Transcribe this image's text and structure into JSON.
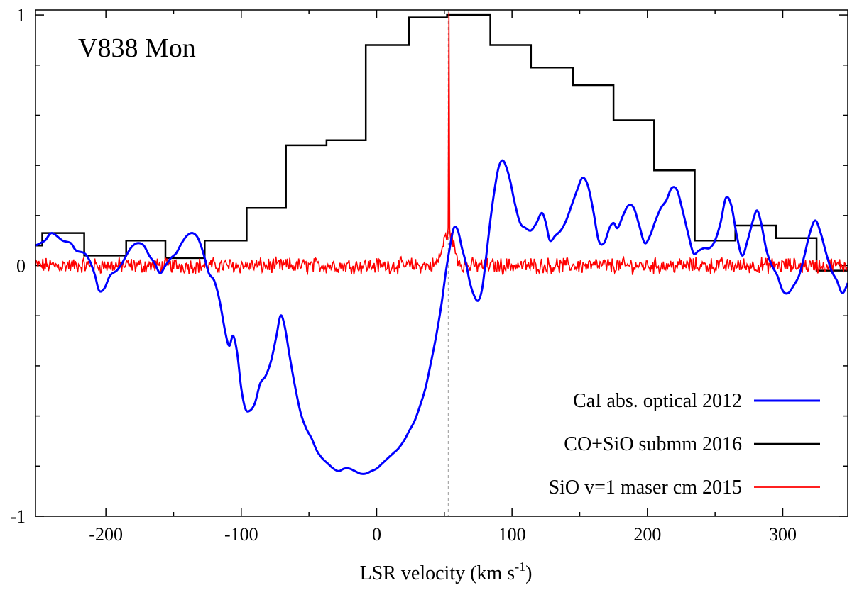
{
  "chart_data": {
    "type": "line",
    "title": "V838 Mon",
    "xlabel_main": "LSR velocity (km s",
    "xlabel_sup": "-1",
    "xlabel_tail": ")",
    "ylabel": "",
    "xlim": [
      -252,
      348
    ],
    "ylim": [
      -1,
      1.02
    ],
    "x_ticks": [
      -200,
      -100,
      0,
      100,
      200,
      300
    ],
    "x_tick_labels": [
      "-200",
      "-100",
      "0",
      "100",
      "200",
      "300"
    ],
    "x_minor_ticks": [
      -150,
      -50,
      50,
      150,
      250
    ],
    "y_ticks": [
      -1,
      0,
      1
    ],
    "y_tick_labels": [
      "-1",
      "0",
      "1"
    ],
    "y_minor_ticks": [
      -0.8,
      -0.6,
      -0.4,
      -0.2,
      0.2,
      0.4,
      0.6,
      0.8
    ],
    "reference_velocity": 53,
    "legend_position": "bottom-right",
    "series": [
      {
        "name": "CaI abs. optical 2012",
        "color": "#0000ff",
        "style": "smooth",
        "points": [
          [
            -252,
            0.08
          ],
          [
            -245,
            0.1
          ],
          [
            -240,
            0.13
          ],
          [
            -232,
            0.1
          ],
          [
            -226,
            0.09
          ],
          [
            -222,
            0.06
          ],
          [
            -216,
            0.05
          ],
          [
            -212,
            0.02
          ],
          [
            -208,
            -0.04
          ],
          [
            -205,
            -0.1
          ],
          [
            -201,
            -0.09
          ],
          [
            -197,
            -0.04
          ],
          [
            -192,
            -0.02
          ],
          [
            -188,
            0.01
          ],
          [
            -184,
            0.05
          ],
          [
            -180,
            0.08
          ],
          [
            -176,
            0.09
          ],
          [
            -172,
            0.08
          ],
          [
            -168,
            0.04
          ],
          [
            -164,
            0.01
          ],
          [
            -160,
            -0.03
          ],
          [
            -156,
            0.0
          ],
          [
            -152,
            0.03
          ],
          [
            -148,
            0.05
          ],
          [
            -144,
            0.09
          ],
          [
            -140,
            0.12
          ],
          [
            -136,
            0.13
          ],
          [
            -132,
            0.11
          ],
          [
            -128,
            0.05
          ],
          [
            -124,
            -0.03
          ],
          [
            -120,
            -0.06
          ],
          [
            -116,
            -0.14
          ],
          [
            -112,
            -0.26
          ],
          [
            -109,
            -0.32
          ],
          [
            -106,
            -0.28
          ],
          [
            -103,
            -0.35
          ],
          [
            -100,
            -0.49
          ],
          [
            -97,
            -0.57
          ],
          [
            -94,
            -0.58
          ],
          [
            -90,
            -0.55
          ],
          [
            -86,
            -0.47
          ],
          [
            -82,
            -0.44
          ],
          [
            -78,
            -0.38
          ],
          [
            -74,
            -0.28
          ],
          [
            -71,
            -0.2
          ],
          [
            -68,
            -0.24
          ],
          [
            -64,
            -0.37
          ],
          [
            -60,
            -0.49
          ],
          [
            -56,
            -0.59
          ],
          [
            -52,
            -0.65
          ],
          [
            -48,
            -0.69
          ],
          [
            -44,
            -0.74
          ],
          [
            -40,
            -0.77
          ],
          [
            -36,
            -0.79
          ],
          [
            -32,
            -0.81
          ],
          [
            -28,
            -0.82
          ],
          [
            -24,
            -0.81
          ],
          [
            -20,
            -0.81
          ],
          [
            -16,
            -0.82
          ],
          [
            -12,
            -0.83
          ],
          [
            -8,
            -0.83
          ],
          [
            -4,
            -0.82
          ],
          [
            0,
            -0.81
          ],
          [
            4,
            -0.79
          ],
          [
            8,
            -0.77
          ],
          [
            12,
            -0.75
          ],
          [
            16,
            -0.73
          ],
          [
            20,
            -0.7
          ],
          [
            24,
            -0.66
          ],
          [
            28,
            -0.62
          ],
          [
            32,
            -0.56
          ],
          [
            36,
            -0.49
          ],
          [
            40,
            -0.39
          ],
          [
            44,
            -0.28
          ],
          [
            48,
            -0.15
          ],
          [
            51,
            -0.03
          ],
          [
            54,
            0.07
          ],
          [
            57,
            0.15
          ],
          [
            60,
            0.14
          ],
          [
            63,
            0.07
          ],
          [
            66,
            0.01
          ],
          [
            69,
            -0.07
          ],
          [
            72,
            -0.12
          ],
          [
            75,
            -0.14
          ],
          [
            78,
            -0.09
          ],
          [
            81,
            0.04
          ],
          [
            84,
            0.18
          ],
          [
            87,
            0.3
          ],
          [
            90,
            0.39
          ],
          [
            93,
            0.42
          ],
          [
            96,
            0.39
          ],
          [
            99,
            0.33
          ],
          [
            102,
            0.25
          ],
          [
            106,
            0.17
          ],
          [
            110,
            0.15
          ],
          [
            114,
            0.14
          ],
          [
            118,
            0.17
          ],
          [
            122,
            0.21
          ],
          [
            125,
            0.17
          ],
          [
            128,
            0.1
          ],
          [
            132,
            0.12
          ],
          [
            136,
            0.14
          ],
          [
            140,
            0.18
          ],
          [
            144,
            0.24
          ],
          [
            148,
            0.3
          ],
          [
            152,
            0.35
          ],
          [
            156,
            0.32
          ],
          [
            160,
            0.22
          ],
          [
            164,
            0.1
          ],
          [
            168,
            0.09
          ],
          [
            172,
            0.15
          ],
          [
            175,
            0.17
          ],
          [
            178,
            0.15
          ],
          [
            182,
            0.2
          ],
          [
            186,
            0.24
          ],
          [
            190,
            0.23
          ],
          [
            194,
            0.16
          ],
          [
            198,
            0.09
          ],
          [
            202,
            0.12
          ],
          [
            206,
            0.18
          ],
          [
            210,
            0.23
          ],
          [
            214,
            0.26
          ],
          [
            218,
            0.31
          ],
          [
            222,
            0.3
          ],
          [
            226,
            0.22
          ],
          [
            230,
            0.13
          ],
          [
            234,
            0.05
          ],
          [
            238,
            0.06
          ],
          [
            242,
            0.07
          ],
          [
            246,
            0.07
          ],
          [
            250,
            0.1
          ],
          [
            254,
            0.17
          ],
          [
            258,
            0.27
          ],
          [
            262,
            0.24
          ],
          [
            266,
            0.12
          ],
          [
            270,
            0.04
          ],
          [
            274,
            0.1
          ],
          [
            278,
            0.18
          ],
          [
            281,
            0.22
          ],
          [
            284,
            0.17
          ],
          [
            288,
            0.06
          ],
          [
            292,
            0.0
          ],
          [
            296,
            -0.04
          ],
          [
            300,
            -0.1
          ],
          [
            304,
            -0.11
          ],
          [
            308,
            -0.08
          ],
          [
            312,
            -0.04
          ],
          [
            316,
            0.04
          ],
          [
            320,
            0.13
          ],
          [
            324,
            0.18
          ],
          [
            328,
            0.13
          ],
          [
            332,
            0.05
          ],
          [
            336,
            -0.02
          ],
          [
            340,
            -0.06
          ],
          [
            344,
            -0.11
          ],
          [
            348,
            -0.07
          ]
        ]
      },
      {
        "name": "CO+SiO submm 2016",
        "color": "#000000",
        "style": "step",
        "edges": [
          -252,
          -247,
          -216,
          -185,
          -156,
          -127,
          -96,
          -67,
          -37,
          -8,
          24,
          52,
          84,
          114,
          145,
          175,
          205,
          235,
          265,
          295,
          325,
          348
        ],
        "values": [
          0.08,
          0.13,
          0.04,
          0.1,
          0.03,
          0.1,
          0.23,
          0.48,
          0.5,
          0.88,
          0.99,
          1.0,
          0.88,
          0.79,
          0.72,
          0.58,
          0.38,
          0.1,
          0.16,
          0.11,
          -0.02
        ]
      },
      {
        "name": "SiO v=1 maser cm 2015",
        "color": "#ff0000",
        "style": "noise",
        "noise_amplitude": 0.025,
        "bump_center": 53,
        "bump_height": 0.13,
        "bump_width": 4,
        "peak_x": 53.2,
        "peak_y": 1.01
      }
    ]
  }
}
